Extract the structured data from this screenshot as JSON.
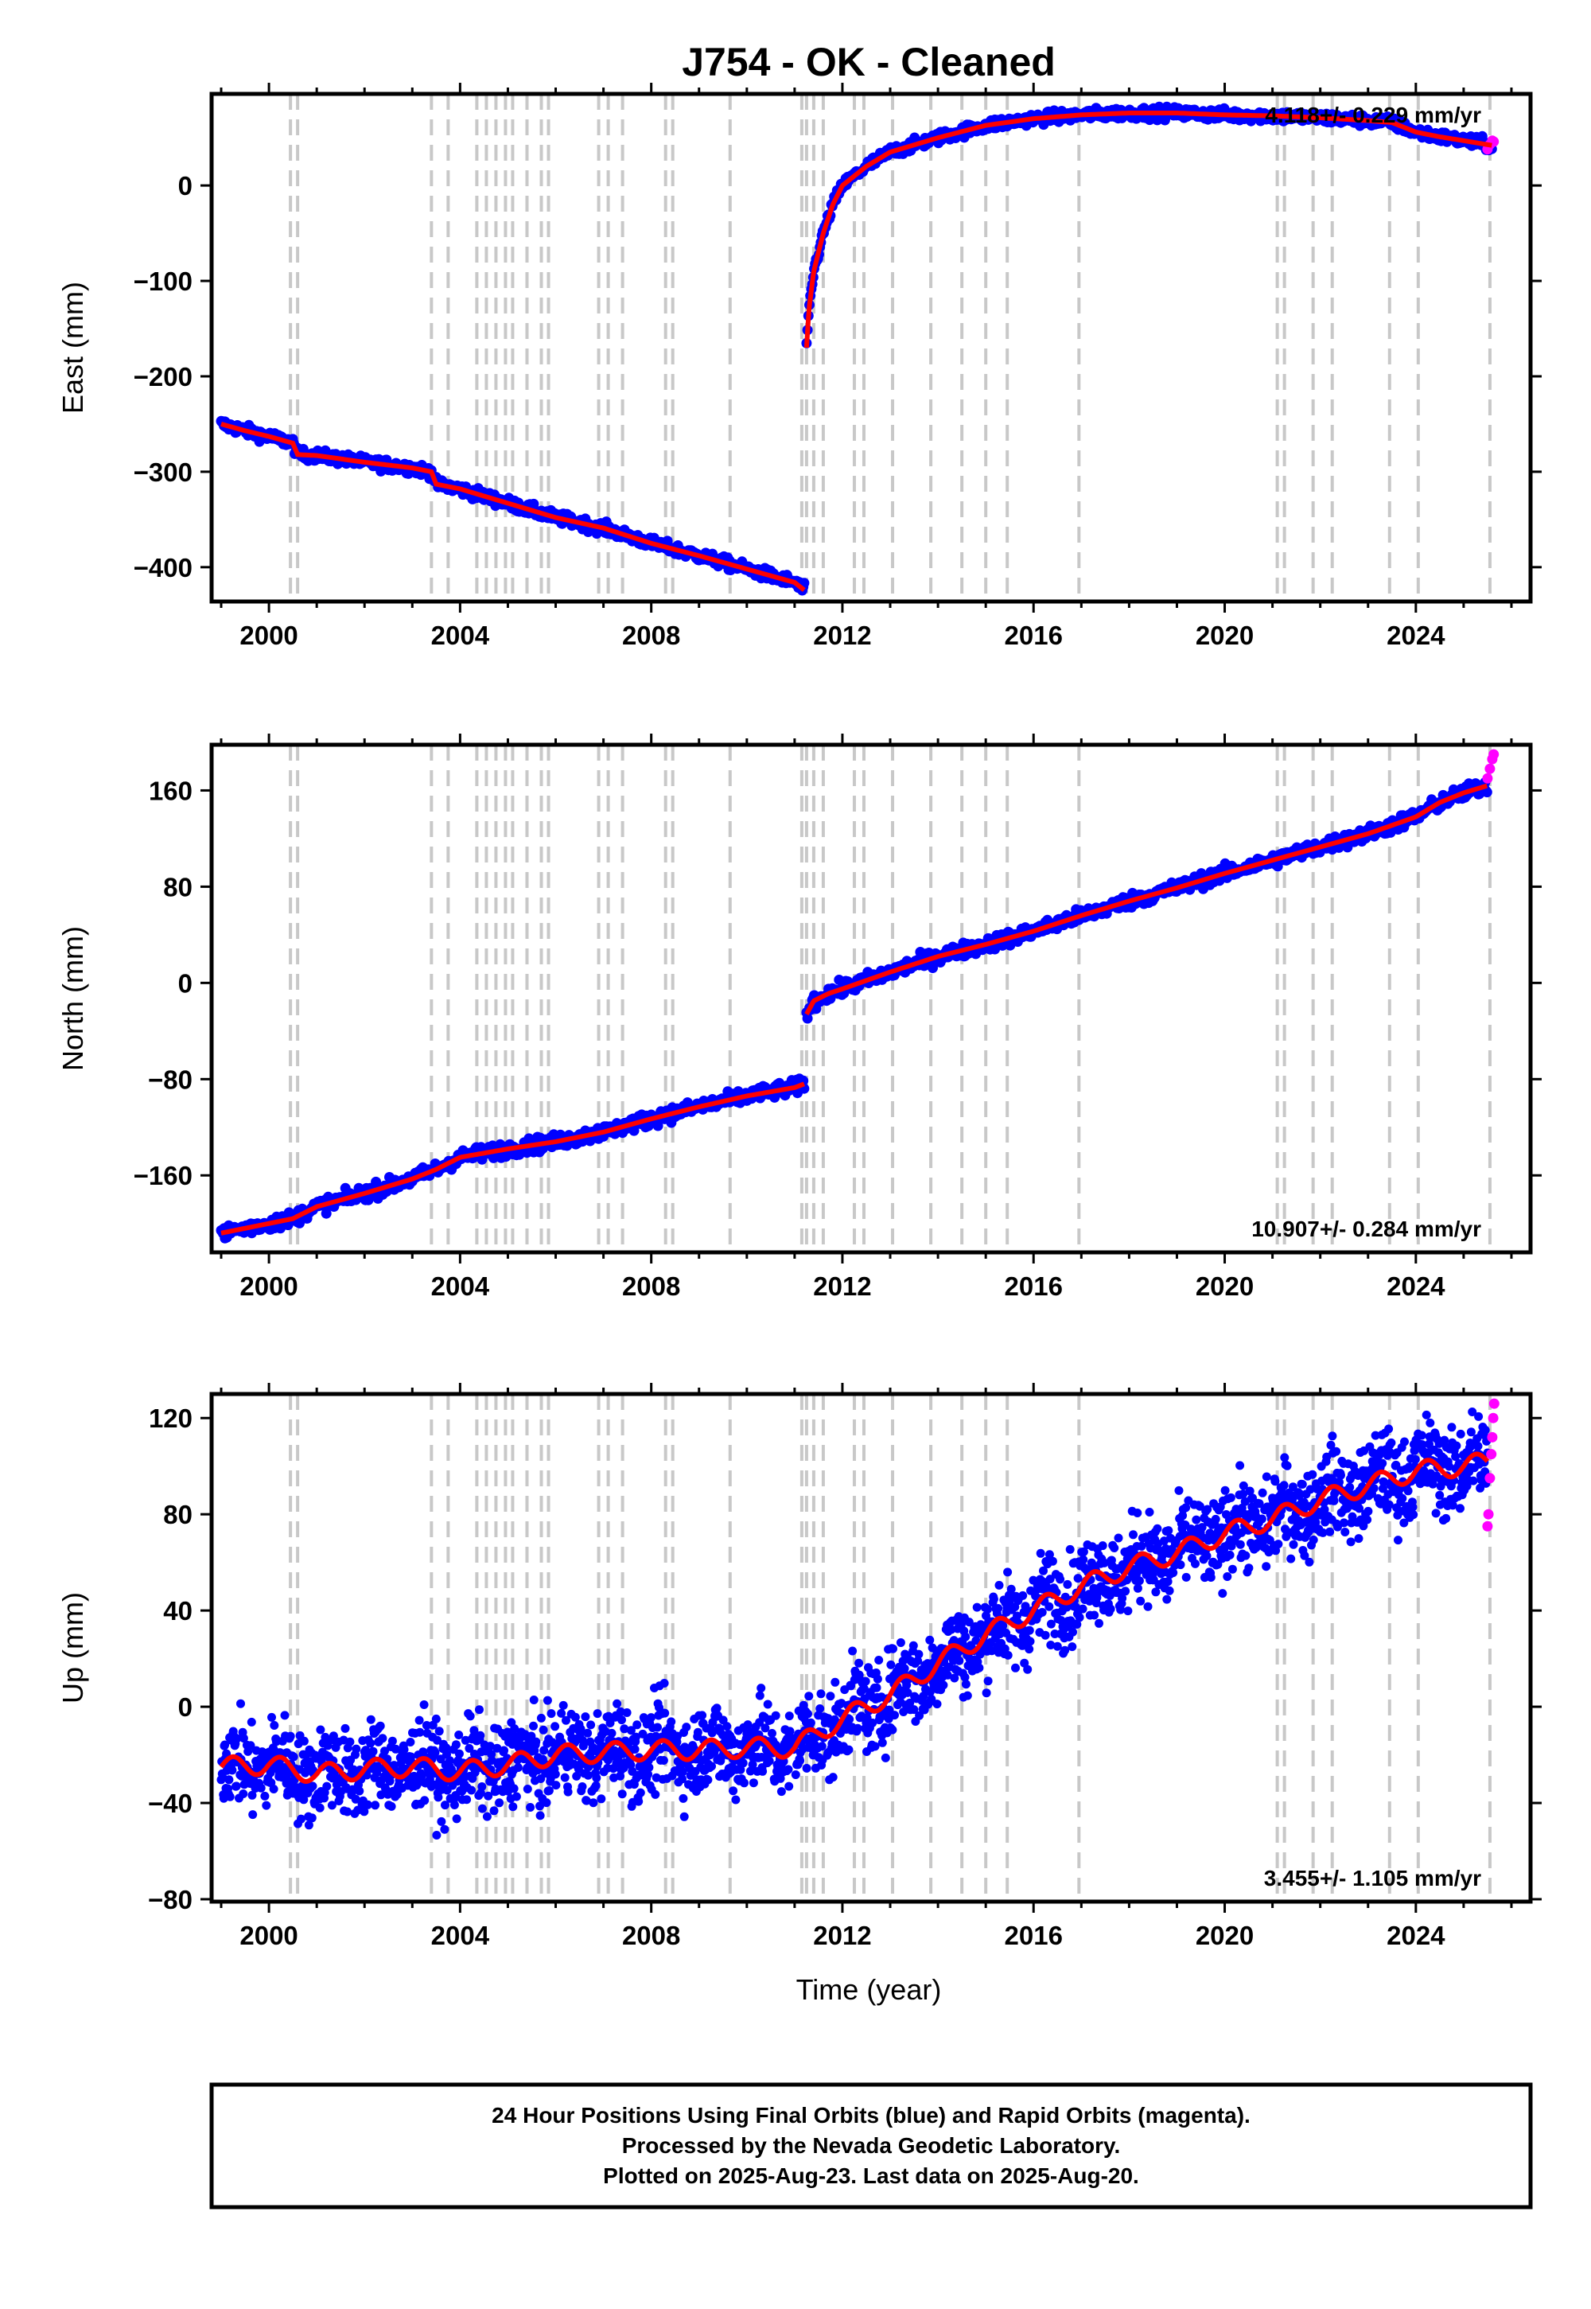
{
  "chart_data": [
    {
      "type": "scatter",
      "panel": "east",
      "title": "J754  - OK - Cleaned",
      "ylabel": "East (mm)",
      "xlabel": "",
      "xlim": [
        1998.8,
        2026.4
      ],
      "ylim": [
        -436,
        96
      ],
      "yticks": [
        -400,
        -300,
        -200,
        -100,
        0
      ],
      "ytick_labels": [
        "−400",
        "−300",
        "−200",
        "−100",
        "0"
      ],
      "xticks": [
        2000,
        2004,
        2008,
        2012,
        2016,
        2020,
        2024
      ],
      "xtick_labels": [
        "2000",
        "2004",
        "2008",
        "2012",
        "2016",
        "2020",
        "2024"
      ],
      "rate_text": "4.118+/- 0.229 mm/yr",
      "rate_position": "top-right",
      "grid": false,
      "series": [
        {
          "role": "final",
          "color": "#0000ff",
          "x": [
            1999.0,
            1999.5,
            2000.0,
            2000.5,
            2000.6,
            2001.0,
            2002.0,
            2003.0,
            2003.4,
            2003.5,
            2004.0,
            2005.0,
            2006.0,
            2007.0,
            2008.0,
            2009.0,
            2010.0,
            2011.0,
            2011.2
          ],
          "y": [
            -250,
            -257,
            -263,
            -270,
            -282,
            -283,
            -290,
            -296,
            -300,
            -313,
            -318,
            -333,
            -348,
            -359,
            -375,
            -388,
            -402,
            -416,
            -424
          ]
        },
        {
          "role": "final",
          "color": "#0000ff",
          "x": [
            2011.25,
            2011.3,
            2011.4,
            2011.6,
            2011.8,
            2012.0,
            2012.5,
            2013.0,
            2014.0,
            2015.0,
            2016.0,
            2017.0,
            2018.0,
            2019.0,
            2020.0,
            2021.0,
            2022.0,
            2023.0,
            2023.5,
            2024.0,
            2024.5,
            2025.0,
            2025.6
          ],
          "y": [
            -170,
            -130,
            -90,
            -50,
            -20,
            0,
            20,
            35,
            50,
            63,
            70,
            74,
            76,
            76,
            74,
            73,
            71,
            68,
            66,
            56,
            51,
            47,
            42
          ]
        },
        {
          "role": "rapid",
          "color": "#ff00ff",
          "x": [
            2025.5,
            2025.55,
            2025.6,
            2025.63
          ],
          "y": [
            38,
            43,
            47,
            46
          ]
        }
      ],
      "model_color": "#ff0000"
    },
    {
      "type": "scatter",
      "panel": "north",
      "ylabel": "North (mm)",
      "xlabel": "",
      "xlim": [
        1998.8,
        2026.4
      ],
      "ylim": [
        -224,
        198
      ],
      "yticks": [
        -160,
        -80,
        0,
        80,
        160
      ],
      "ytick_labels": [
        "−160",
        "−80",
        "0",
        "80",
        "160"
      ],
      "xticks": [
        2000,
        2004,
        2008,
        2012,
        2016,
        2020,
        2024
      ],
      "xtick_labels": [
        "2000",
        "2004",
        "2008",
        "2012",
        "2016",
        "2020",
        "2024"
      ],
      "rate_text": "10.907+/- 0.284 mm/yr",
      "rate_position": "bottom-right",
      "grid": false,
      "series": [
        {
          "role": "final",
          "color": "#0000ff",
          "x": [
            1999.0,
            2000.0,
            2000.5,
            2001.0,
            2002.0,
            2003.0,
            2003.5,
            2004.0,
            2005.0,
            2006.0,
            2007.0,
            2008.0,
            2009.0,
            2010.0,
            2011.0,
            2011.2
          ],
          "y": [
            -208,
            -200,
            -196,
            -186,
            -175,
            -163,
            -155,
            -145,
            -138,
            -132,
            -124,
            -113,
            -103,
            -94,
            -87,
            -84
          ]
        },
        {
          "role": "final",
          "color": "#0000ff",
          "x": [
            2011.25,
            2011.4,
            2011.7,
            2012.0,
            2013.0,
            2014.0,
            2015.0,
            2016.0,
            2017.0,
            2018.0,
            2019.0,
            2020.0,
            2021.0,
            2022.0,
            2023.0,
            2024.0,
            2024.5,
            2025.0,
            2025.5
          ],
          "y": [
            -26,
            -15,
            -9,
            -5,
            9,
            22,
            32,
            43,
            56,
            68,
            79,
            91,
            102,
            113,
            124,
            138,
            150,
            158,
            164
          ]
        },
        {
          "role": "rapid",
          "color": "#ff00ff",
          "x": [
            2025.5,
            2025.55,
            2025.6,
            2025.63
          ],
          "y": [
            170,
            178,
            186,
            190
          ]
        }
      ],
      "model_color": "#ff0000"
    },
    {
      "type": "scatter",
      "panel": "up",
      "ylabel": "Up (mm)",
      "xlabel": "Time (year)",
      "xlim": [
        1998.8,
        2026.4
      ],
      "ylim": [
        -81,
        130
      ],
      "yticks": [
        -80,
        -40,
        0,
        40,
        80,
        120
      ],
      "ytick_labels": [
        "−80",
        "−40",
        "0",
        "40",
        "80",
        "120"
      ],
      "xticks": [
        2000,
        2004,
        2008,
        2012,
        2016,
        2020,
        2024
      ],
      "xtick_labels": [
        "2000",
        "2004",
        "2008",
        "2012",
        "2016",
        "2020",
        "2024"
      ],
      "rate_text": "3.455+/- 1.105 mm/yr",
      "rate_position": "bottom-right",
      "grid": false,
      "series": [
        {
          "role": "final",
          "color": "#0000ff",
          "x": [
            1999.0,
            2000.0,
            2001.0,
            2002.0,
            2003.0,
            2004.0,
            2005.0,
            2006.0,
            2007.0,
            2008.0,
            2009.0,
            2010.0,
            2011.0,
            2012.0,
            2013.0,
            2014.0,
            2015.0,
            2016.0,
            2017.0,
            2018.0,
            2019.0,
            2020.0,
            2021.0,
            2022.0,
            2023.0,
            2024.0,
            2025.0,
            2025.5
          ],
          "y": [
            -25,
            -24,
            -28,
            -26,
            -25,
            -27,
            -24,
            -20,
            -19,
            -18,
            -18,
            -17,
            -17,
            -5,
            5,
            18,
            30,
            40,
            50,
            58,
            64,
            72,
            78,
            86,
            92,
            98,
            100,
            102
          ]
        },
        {
          "role": "rapid",
          "color": "#ff00ff",
          "x": [
            2025.5,
            2025.52,
            2025.55,
            2025.58,
            2025.6,
            2025.62,
            2025.64
          ],
          "y": [
            75,
            80,
            95,
            105,
            112,
            120,
            126
          ]
        }
      ],
      "model_color": "#ff0000"
    }
  ],
  "equipment_change_epochs": [
    2000.45,
    2000.6,
    2003.4,
    2003.75,
    2004.35,
    2004.55,
    2004.75,
    2004.95,
    2005.1,
    2005.4,
    2005.7,
    2005.85,
    2006.9,
    2007.1,
    2007.4,
    2008.3,
    2008.45,
    2009.65,
    2011.15,
    2011.25,
    2011.4,
    2011.6,
    2012.25,
    2012.45,
    2013.05,
    2013.85,
    2014.5,
    2015.0,
    2015.45,
    2016.95,
    2021.1,
    2021.25,
    2021.85,
    2022.25,
    2023.45,
    2024.05,
    2025.55
  ],
  "equipment_color": "#c8c8c8",
  "caption": {
    "line1": "24 Hour Positions Using Final Orbits (blue) and Rapid Orbits (magenta).",
    "line2": "Processed by the Nevada Geodetic Laboratory.",
    "line3": "Plotted on 2025-Aug-23. Last data on 2025-Aug-20."
  }
}
